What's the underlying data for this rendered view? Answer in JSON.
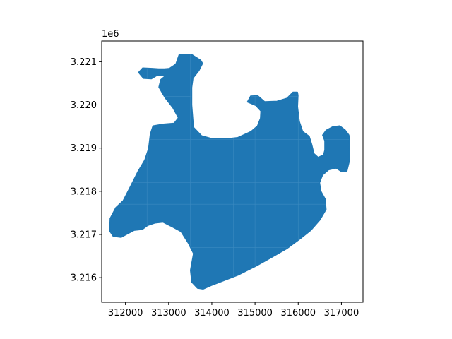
{
  "chart_data": {
    "type": "map",
    "title": "",
    "xlabel": "",
    "ylabel": "",
    "y_offset_label": "1e6",
    "xlim": [
      311450,
      317500
    ],
    "ylim": [
      3215430,
      3221480
    ],
    "x_ticks": [
      312000,
      313000,
      314000,
      315000,
      316000,
      317000
    ],
    "x_tick_labels": [
      "312000",
      "313000",
      "314000",
      "315000",
      "316000",
      "317000"
    ],
    "y_ticks": [
      3216000,
      3217000,
      3218000,
      3219000,
      3220000,
      3221000
    ],
    "y_tick_labels": [
      "3.216",
      "3.217",
      "3.218",
      "3.219",
      "3.220",
      "3.221"
    ],
    "fill_color": "#1f77b4",
    "grid": false,
    "region_outline": [
      [
        313520,
        3221170
      ],
      [
        313740,
        3221030
      ],
      [
        313780,
        3220960
      ],
      [
        313700,
        3220800
      ],
      [
        313560,
        3220620
      ],
      [
        313530,
        3220400
      ],
      [
        313530,
        3220000
      ],
      [
        313570,
        3219480
      ],
      [
        313760,
        3219280
      ],
      [
        314020,
        3219210
      ],
      [
        314350,
        3219210
      ],
      [
        314600,
        3219240
      ],
      [
        314910,
        3219380
      ],
      [
        315060,
        3219510
      ],
      [
        315130,
        3219690
      ],
      [
        315140,
        3219860
      ],
      [
        315020,
        3219990
      ],
      [
        314830,
        3220070
      ],
      [
        314900,
        3220200
      ],
      [
        315060,
        3220210
      ],
      [
        315220,
        3220070
      ],
      [
        315510,
        3220080
      ],
      [
        315740,
        3220150
      ],
      [
        315880,
        3220290
      ],
      [
        315980,
        3220290
      ],
      [
        315990,
        3220220
      ],
      [
        315980,
        3219960
      ],
      [
        316020,
        3219620
      ],
      [
        316100,
        3219380
      ],
      [
        316250,
        3219270
      ],
      [
        316310,
        3219080
      ],
      [
        316360,
        3218870
      ],
      [
        316460,
        3218780
      ],
      [
        316590,
        3218840
      ],
      [
        316620,
        3218950
      ],
      [
        316620,
        3219170
      ],
      [
        316570,
        3219300
      ],
      [
        316650,
        3219410
      ],
      [
        316800,
        3219490
      ],
      [
        316960,
        3219510
      ],
      [
        317080,
        3219420
      ],
      [
        317170,
        3219300
      ],
      [
        317190,
        3219050
      ],
      [
        317180,
        3218700
      ],
      [
        317120,
        3218460
      ],
      [
        316990,
        3218470
      ],
      [
        316880,
        3218540
      ],
      [
        316700,
        3218500
      ],
      [
        316560,
        3218380
      ],
      [
        316490,
        3218200
      ],
      [
        316520,
        3218000
      ],
      [
        316620,
        3217820
      ],
      [
        316640,
        3217580
      ],
      [
        316500,
        3217340
      ],
      [
        316290,
        3217100
      ],
      [
        316040,
        3216900
      ],
      [
        315740,
        3216680
      ],
      [
        315360,
        3216460
      ],
      [
        315020,
        3216270
      ],
      [
        314600,
        3216060
      ],
      [
        314240,
        3215920
      ],
      [
        313980,
        3215820
      ],
      [
        313800,
        3215740
      ],
      [
        313670,
        3215760
      ],
      [
        313540,
        3215900
      ],
      [
        313510,
        3216170
      ],
      [
        313580,
        3216560
      ],
      [
        313460,
        3216800
      ],
      [
        313290,
        3217070
      ],
      [
        313050,
        3217200
      ],
      [
        312870,
        3217290
      ],
      [
        312680,
        3217270
      ],
      [
        312510,
        3217210
      ],
      [
        312390,
        3217120
      ],
      [
        312200,
        3217100
      ],
      [
        312030,
        3217010
      ],
      [
        311900,
        3216940
      ],
      [
        311720,
        3216960
      ],
      [
        311640,
        3217080
      ],
      [
        311650,
        3217370
      ],
      [
        311780,
        3217620
      ],
      [
        311950,
        3217780
      ],
      [
        312120,
        3218110
      ],
      [
        312290,
        3218450
      ],
      [
        312450,
        3218720
      ],
      [
        312540,
        3218990
      ],
      [
        312580,
        3219320
      ],
      [
        312640,
        3219510
      ],
      [
        312880,
        3219550
      ],
      [
        313130,
        3219570
      ],
      [
        313230,
        3219700
      ],
      [
        313100,
        3219940
      ],
      [
        312920,
        3220170
      ],
      [
        312780,
        3220410
      ],
      [
        312820,
        3220580
      ],
      [
        312960,
        3220700
      ],
      [
        312720,
        3220680
      ],
      [
        312600,
        3220610
      ],
      [
        312420,
        3220620
      ],
      [
        312310,
        3220750
      ],
      [
        312400,
        3220850
      ],
      [
        312620,
        3220840
      ],
      [
        312770,
        3220830
      ],
      [
        312900,
        3220830
      ],
      [
        313020,
        3220840
      ],
      [
        313170,
        3220940
      ],
      [
        313250,
        3221170
      ]
    ]
  }
}
